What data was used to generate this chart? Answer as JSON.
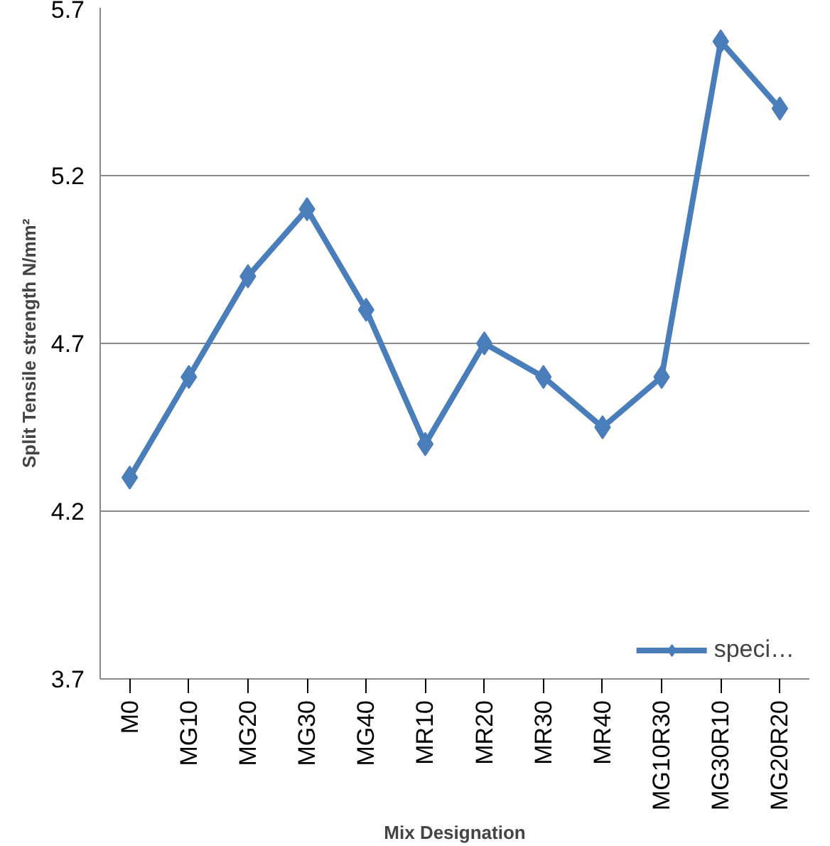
{
  "chart_data": {
    "type": "line",
    "xlabel": "Mix Designation",
    "ylabel": "Split Tensile strength N/mm²",
    "categories": [
      "M0",
      "MG10",
      "MG20",
      "MG30",
      "MG40",
      "MR10",
      "MR20",
      "MR30",
      "MR40",
      "MG10R30",
      "MG30R10",
      "MG20R20"
    ],
    "series": [
      {
        "name": "speci…",
        "color": "#4a7ebb",
        "values": [
          4.3,
          4.6,
          4.9,
          5.1,
          4.8,
          4.4,
          4.7,
          4.6,
          4.45,
          4.6,
          5.6,
          5.4
        ]
      }
    ],
    "ylim": [
      3.7,
      5.7
    ],
    "yticks": [
      3.7,
      4.2,
      4.7,
      5.2,
      5.7
    ],
    "grid": "y",
    "legend": "bottom right",
    "marker": "diamond",
    "line_style": "solid"
  }
}
